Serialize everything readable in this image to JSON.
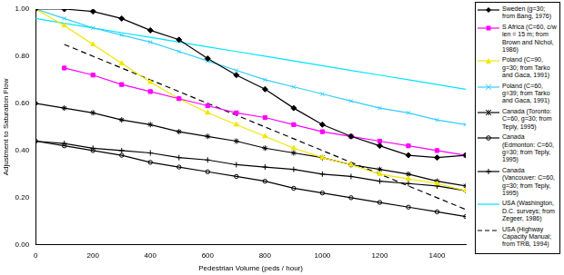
{
  "chart_data": {
    "type": "line",
    "x_label": "Pedestrian Volume (peds / hour)",
    "y_label": "Adjustment to Saturation Flow",
    "x": [
      0,
      100,
      200,
      300,
      400,
      500,
      600,
      700,
      800,
      900,
      1000,
      1100,
      1200,
      1300,
      1400,
      1500
    ],
    "xlim": [
      0,
      1500
    ],
    "xticks": [
      0,
      200,
      400,
      600,
      800,
      1000,
      1200,
      1400
    ],
    "ylim": [
      0,
      1
    ],
    "yticks": [
      {
        "value": 0,
        "label": "0.00"
      },
      {
        "value": 0.2,
        "label": "0.20"
      },
      {
        "value": 0.4,
        "label": "0.40"
      },
      {
        "value": 0.6,
        "label": "0.60"
      },
      {
        "value": 0.8,
        "label": "0.80"
      },
      {
        "value": 1,
        "label": "1.00"
      }
    ],
    "grid": false,
    "legend": "right",
    "series": [
      {
        "name": "Sweden (g=30; from Bang, 1976)",
        "color": "#000000",
        "marker": "diamond",
        "line_style": "solid",
        "values": [
          1.0,
          1.0,
          0.99,
          0.96,
          0.91,
          0.87,
          0.79,
          0.72,
          0.66,
          0.58,
          0.51,
          0.46,
          0.42,
          0.38,
          0.37,
          0.38
        ]
      },
      {
        "name": "S Africa (C=60, c/w len = 15 m; from Brown and Nichol, 1986)",
        "color": "#ff00ff",
        "marker": "square",
        "line_style": "solid",
        "values": [
          null,
          0.75,
          0.72,
          0.68,
          0.65,
          0.62,
          0.59,
          0.56,
          0.54,
          0.51,
          0.48,
          0.46,
          0.44,
          0.42,
          0.4,
          0.38
        ]
      },
      {
        "name": "Poland (C=90, g=30; from Tarko and Gaca, 1991)",
        "color": "#f2e600",
        "marker": "triangle",
        "line_style": "solid",
        "values": [
          1.0,
          0.93,
          0.85,
          0.77,
          0.69,
          0.62,
          0.56,
          0.51,
          0.46,
          0.41,
          0.37,
          0.34,
          0.3,
          0.28,
          0.26,
          0.23
        ]
      },
      {
        "name": "Poland (C=60, g=39; from Tarko and Gaca, 1991)",
        "color": "#33ccff",
        "marker": "x",
        "line_style": "solid",
        "values": [
          1.0,
          0.96,
          0.92,
          0.89,
          0.86,
          0.82,
          0.78,
          0.74,
          0.7,
          0.67,
          0.64,
          0.61,
          0.58,
          0.56,
          0.53,
          0.51
        ]
      },
      {
        "name": "Canada (Toronto: C=60, g=30; from Teply, 1995)",
        "color": "#000000",
        "marker": "star",
        "line_style": "solid",
        "values": [
          0.6,
          0.58,
          0.56,
          0.53,
          0.51,
          0.48,
          0.46,
          0.44,
          0.41,
          0.39,
          0.37,
          0.34,
          0.32,
          0.3,
          0.27,
          0.25
        ]
      },
      {
        "name": "Canada (Edmonton: C=60, g=30; from Teply, 1995)",
        "color": "#000000",
        "marker": "circle",
        "line_style": "solid",
        "values": [
          0.44,
          0.42,
          0.4,
          0.38,
          0.35,
          0.33,
          0.31,
          0.29,
          0.27,
          0.24,
          0.22,
          0.2,
          0.18,
          0.16,
          0.14,
          0.12
        ]
      },
      {
        "name": "Canada (Vancouver: C=60, g=30; from Teply, 1995)",
        "color": "#000000",
        "marker": "plus",
        "line_style": "solid",
        "values": [
          0.44,
          0.43,
          0.41,
          0.4,
          0.39,
          0.37,
          0.36,
          0.34,
          0.33,
          0.32,
          0.3,
          0.29,
          0.27,
          0.26,
          0.25,
          0.23
        ]
      },
      {
        "name": "USA (Washington, D.C. surveys; from Zegeer, 1986)",
        "color": "#00e5ff",
        "marker": "none",
        "line_style": "solid",
        "values": [
          0.96,
          0.94,
          0.92,
          0.9,
          0.88,
          0.86,
          0.84,
          0.82,
          0.8,
          0.78,
          0.76,
          0.74,
          0.72,
          0.7,
          0.68,
          0.66
        ]
      },
      {
        "name": "USA (Highway Capacity Manual; from TRB, 1994)",
        "color": "#000000",
        "marker": "none",
        "line_style": "dashed",
        "values": [
          null,
          0.85,
          0.8,
          0.75,
          0.7,
          0.65,
          0.6,
          0.55,
          0.5,
          0.45,
          0.4,
          0.35,
          0.3,
          0.25,
          0.2,
          0.15
        ]
      }
    ]
  }
}
